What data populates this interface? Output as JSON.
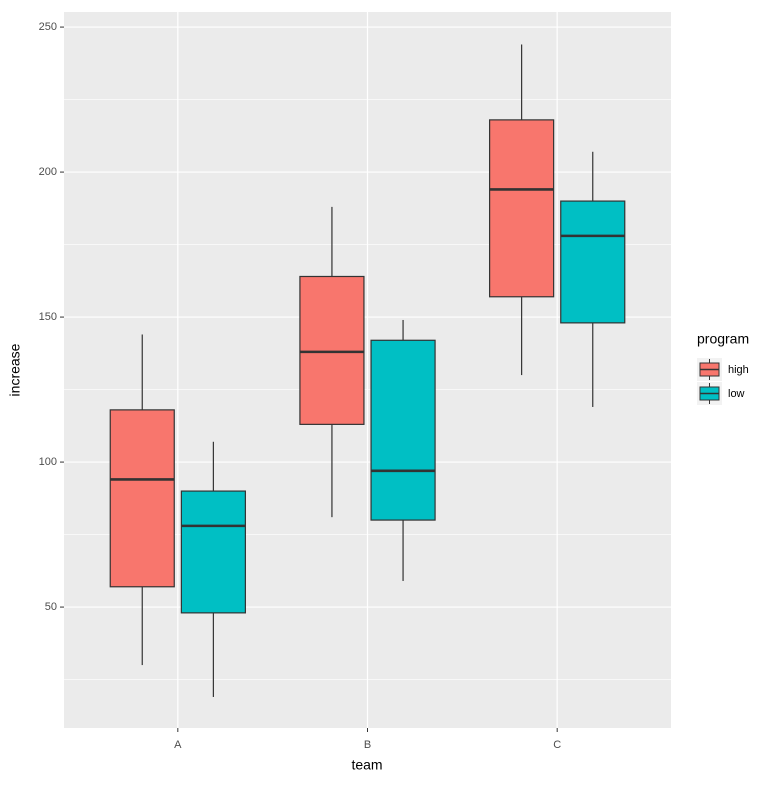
{
  "chart_data": {
    "type": "boxplot",
    "x_label": "team",
    "y_label": "increase",
    "categories": [
      "A",
      "B",
      "C"
    ],
    "legend_title": "program",
    "series": [
      {
        "name": "high",
        "color": "#f8766d",
        "min": [
          30,
          81,
          130
        ],
        "q1": [
          57,
          113,
          157
        ],
        "median": [
          94,
          138,
          194
        ],
        "q3": [
          118,
          164,
          218
        ],
        "max": [
          144,
          188,
          244
        ]
      },
      {
        "name": "low",
        "color": "#00bfc4",
        "min": [
          19,
          59,
          119
        ],
        "q1": [
          48,
          80,
          148
        ],
        "median": [
          78,
          97,
          178
        ],
        "q3": [
          90,
          142,
          190
        ],
        "max": [
          107,
          149,
          207
        ]
      }
    ],
    "ylim": [
      8.3,
      255.2
    ],
    "yticks": [
      50,
      100,
      150,
      200,
      250
    ],
    "minor_gridlines": [
      25,
      75,
      125,
      175,
      225
    ],
    "grid": true,
    "legend_position": "right"
  }
}
